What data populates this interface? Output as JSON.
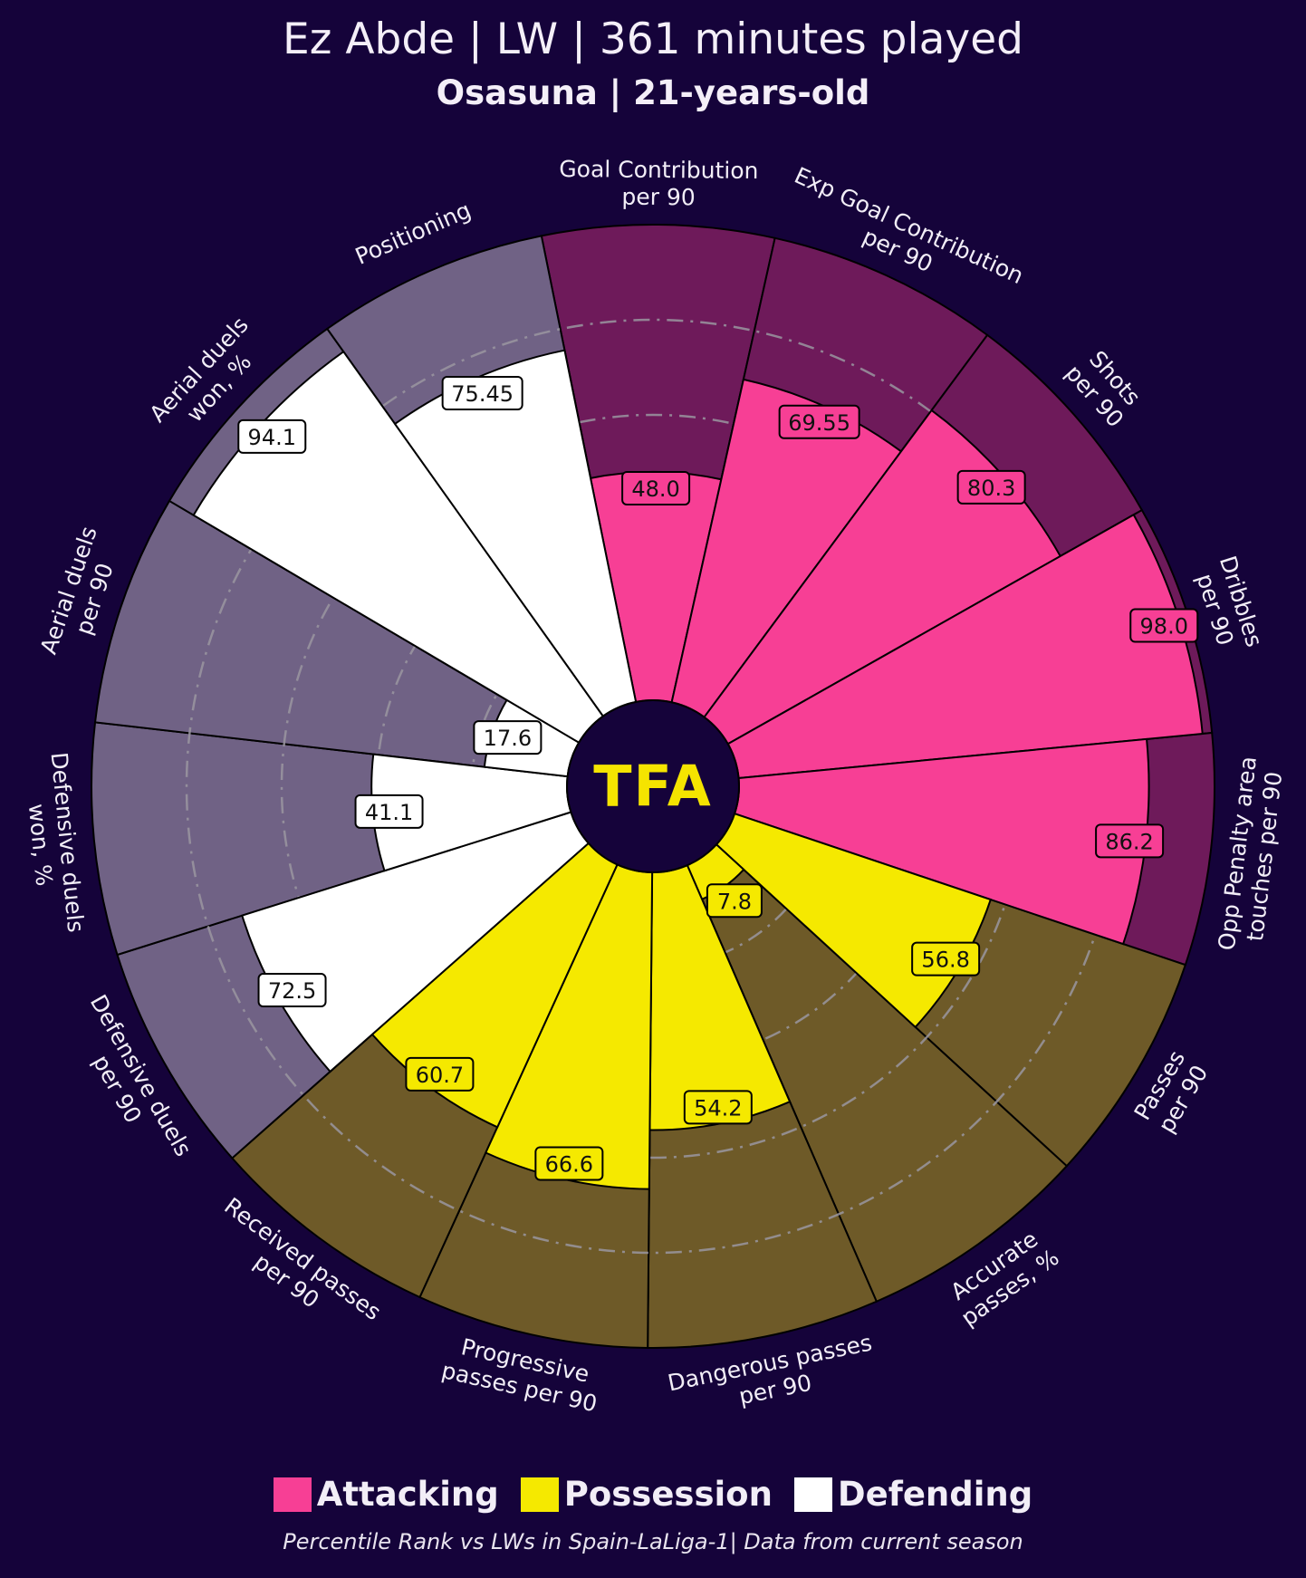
{
  "header": {
    "title": "Ez Abde | LW | 361 minutes played",
    "subtitle": "Osasuna | 21-years-old"
  },
  "logo": {
    "text": "TFA",
    "color": "#f5e400"
  },
  "legend": [
    {
      "label": "Attacking",
      "color": "#f73f95"
    },
    {
      "label": "Possession",
      "color": "#f5e900"
    },
    {
      "label": "Defending",
      "color": "#ffffff"
    }
  ],
  "footer": {
    "text": "Percentile Rank vs LWs in Spain-LaLiga-1| Data from current season"
  },
  "chart_data": {
    "type": "pie",
    "variant": "radial percentile pizza",
    "rlim": [
      0,
      100
    ],
    "grid": "dash-dot rings",
    "legend_position": "bottom-center",
    "group_colors": {
      "Attacking": {
        "slice": "#f73f95",
        "background": "#6e1a5a"
      },
      "Possession": {
        "slice": "#f5e900",
        "background": "#6e5a28"
      },
      "Defending": {
        "slice": "#ffffff",
        "background": "#706285"
      }
    },
    "params": [
      {
        "label": "Goal Contribution\nper 90",
        "value": 48.0,
        "display": "48.0",
        "group": "Attacking"
      },
      {
        "label": "Exp Goal Contribution\nper 90",
        "value": 69.55,
        "display": "69.55",
        "group": "Attacking"
      },
      {
        "label": "Shots\nper 90",
        "value": 80.3,
        "display": "80.3",
        "group": "Attacking"
      },
      {
        "label": "Dribbles\nper 90",
        "value": 98.0,
        "display": "98.0",
        "group": "Attacking"
      },
      {
        "label": "Opp Penalty area\ntouches per 90",
        "value": 86.2,
        "display": "86.2",
        "group": "Attacking"
      },
      {
        "label": "Passes\nper 90",
        "value": 56.8,
        "display": "56.8",
        "group": "Possession"
      },
      {
        "label": "Accurate\npasses, %",
        "value": 7.8,
        "display": "7.8",
        "group": "Possession"
      },
      {
        "label": "Dangerous passes\nper 90",
        "value": 54.2,
        "display": "54.2",
        "group": "Possession"
      },
      {
        "label": "Progressive\npasses per 90",
        "value": 66.6,
        "display": "66.6",
        "group": "Possession"
      },
      {
        "label": "Received passes\nper 90",
        "value": 60.7,
        "display": "60.7",
        "group": "Possession"
      },
      {
        "label": "Defensive duels\nper 90",
        "value": 72.5,
        "display": "72.5",
        "group": "Defending"
      },
      {
        "label": "Defensive duels\nwon, %",
        "value": 41.1,
        "display": "41.1",
        "group": "Defending"
      },
      {
        "label": "Aerial duels\nper 90",
        "value": 17.6,
        "display": "17.6",
        "group": "Defending"
      },
      {
        "label": "Aerial duels\nwon, %",
        "value": 94.1,
        "display": "94.1",
        "group": "Defending"
      },
      {
        "label": "Positioning",
        "value": 75.45,
        "display": "75.45",
        "group": "Defending"
      }
    ]
  }
}
